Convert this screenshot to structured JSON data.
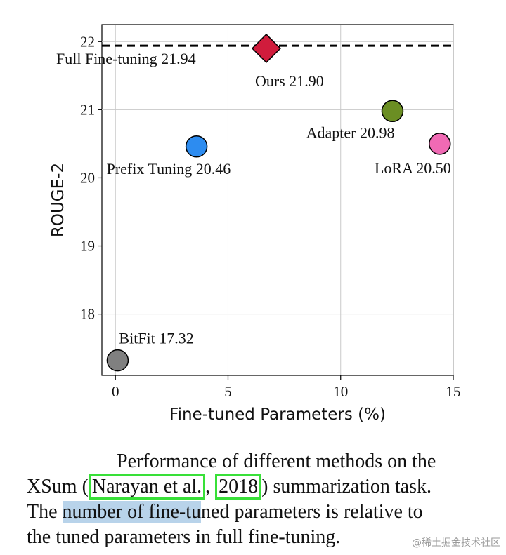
{
  "chart_data": {
    "type": "scatter",
    "xlabel": "Fine-tuned Parameters (%)",
    "ylabel": "ROUGE-2",
    "xlim": [
      -0.6,
      15
    ],
    "ylim": [
      17.1,
      22.25
    ],
    "xticks": [
      0,
      5,
      10,
      15
    ],
    "yticks": [
      18,
      19,
      20,
      21,
      22
    ],
    "grid": true,
    "reference_line": {
      "label": "Full Fine-tuning 21.94",
      "y": 21.94,
      "style": "dashed"
    },
    "points": [
      {
        "label": "Ours 21.90",
        "x": 6.7,
        "y": 21.9,
        "marker": "diamond",
        "color": "#d01c3c"
      },
      {
        "label": "Adapter 20.98",
        "x": 12.3,
        "y": 20.98,
        "marker": "circle",
        "color": "#6b8e23"
      },
      {
        "label": "LoRA 20.50",
        "x": 14.4,
        "y": 20.5,
        "marker": "circle",
        "color": "#f06ab4"
      },
      {
        "label": "Prefix Tuning 20.46",
        "x": 3.6,
        "y": 20.46,
        "marker": "circle",
        "color": "#2d8cf0"
      },
      {
        "label": "BitFit 17.32",
        "x": 0.1,
        "y": 17.32,
        "marker": "circle",
        "color": "#808080"
      }
    ]
  },
  "caption": {
    "line1": "Performance of different methods on the",
    "line2_pre": "XSum (",
    "cite_author": "Narayan et al.",
    "cite_sep": ", ",
    "cite_year": "2018",
    "line2_post": ") summarization task.",
    "line3_pre": "The ",
    "line3_highlight": "number of fine-tu",
    "line3_post": "ned parameters is relative to",
    "line4": "the tuned parameters in full fine-tuning."
  },
  "watermark": "@稀土掘金技术社区"
}
